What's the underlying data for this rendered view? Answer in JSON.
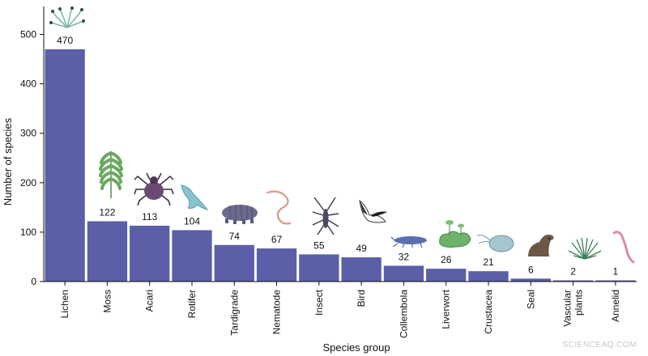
{
  "chart_data": {
    "type": "bar",
    "categories": [
      "Lichen",
      "Moss",
      "Acari",
      "Rotifer",
      "Tardigrade",
      "Nematode",
      "Insect",
      "Bird",
      "Collembola",
      "Liverwort",
      "Crustacea",
      "Seal",
      "Vascular plants",
      "Annelid"
    ],
    "values": [
      470,
      122,
      113,
      104,
      74,
      67,
      55,
      49,
      32,
      26,
      21,
      6,
      2,
      1
    ],
    "xlabel": "Species group",
    "ylabel": "Number of species",
    "ylim": [
      0,
      550
    ],
    "yticks": [
      0,
      100,
      200,
      300,
      400,
      500
    ],
    "bar_color": "#5b5fa8",
    "grid": false,
    "icons": [
      "lichen-icon",
      "moss-icon",
      "acari-icon",
      "rotifer-icon",
      "tardigrade-icon",
      "nematode-icon",
      "insect-icon",
      "bird-icon",
      "collembola-icon",
      "liverwort-icon",
      "crustacea-icon",
      "seal-icon",
      "vascular-plants-icon",
      "annelid-icon"
    ]
  },
  "watermark": "SCIENCEAQ.COM"
}
